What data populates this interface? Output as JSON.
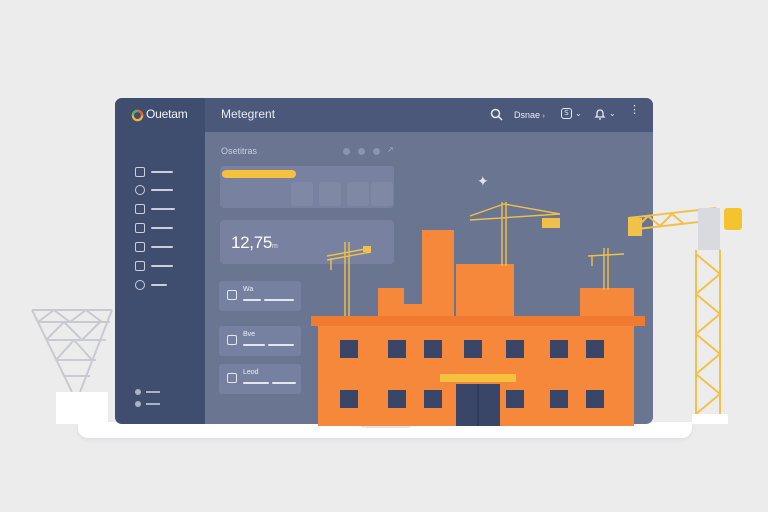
{
  "app": {
    "logo_text": "Ouetam",
    "title": "Metegrent"
  },
  "topbar": {
    "menu_label": "Dsnae",
    "view_label": "S",
    "search_icon": "search-icon",
    "bell_icon": "bell-icon",
    "more_icon": "more-icon"
  },
  "sidebar": {
    "items": [
      {
        "icon": "home-icon"
      },
      {
        "icon": "clock-icon"
      },
      {
        "icon": "calendar-icon"
      },
      {
        "icon": "chart-icon"
      },
      {
        "icon": "grid-icon"
      },
      {
        "icon": "document-icon"
      },
      {
        "icon": "settings-icon"
      }
    ],
    "footer": [
      {
        "icon": "help-icon"
      },
      {
        "icon": "logout-icon"
      }
    ]
  },
  "main": {
    "section_label": "Osetitras",
    "header_icons": [
      "dot-icon",
      "dot-icon",
      "dot-icon",
      "pin-icon"
    ],
    "time": {
      "value": "12,75",
      "unit": "m"
    },
    "list_cards": [
      {
        "title": "Wa"
      },
      {
        "title": "Bve"
      },
      {
        "title": "Leod"
      }
    ]
  },
  "colors": {
    "background": "#ececed",
    "sidebar": "#3f4d6e",
    "window": "#6a7592",
    "accent_yellow": "#f6c23e",
    "building_orange": "#f5883a",
    "window_navy": "#394668"
  }
}
